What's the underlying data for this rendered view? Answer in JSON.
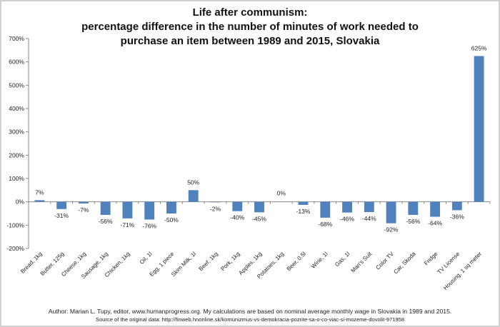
{
  "chart_data": {
    "type": "bar",
    "title_lines": [
      "Life after communism:",
      "percentage difference in the number of minutes of work needed to",
      "purchase an item between 1989 and 2015, Slovakia"
    ],
    "categories": [
      "Bread, 1kg",
      "Butter, 125g",
      "Cheese, 1kg",
      "Sausage, 1kg",
      "Chicken, 1kg",
      "Oil, 1l",
      "Egg, 1 piece",
      "Skim Milk, 1l",
      "Beef, 1kg",
      "Pork, 1kg",
      "Apples, 1kg",
      "Potatoes, 1kg",
      "Beer, 0.5l",
      "Wine, 1l",
      "Gas, 1l",
      "Man's Suit",
      "Color TV",
      "Car, Skoda",
      "Fridge",
      "TV License",
      "Housing, 1 sq meter"
    ],
    "values": [
      7,
      -31,
      -7,
      -56,
      -71,
      -76,
      -50,
      50,
      -2,
      -40,
      -45,
      0,
      -13,
      -68,
      -46,
      -44,
      -92,
      -56,
      -64,
      -36,
      625
    ],
    "data_labels": [
      "7%",
      "-31%",
      "-7%",
      "-56%",
      "-71%",
      "-76%",
      "-50%",
      "50%",
      "-2%",
      "-40%",
      "-45%",
      "0%",
      "-13%",
      "-68%",
      "-46%",
      "-44%",
      "-92%",
      "-56%",
      "-64%",
      "-36%",
      "625%"
    ],
    "y_ticks": [
      "-200%",
      "-100%",
      "0%",
      "100%",
      "200%",
      "300%",
      "400%",
      "500%",
      "600%",
      "700%"
    ],
    "ylim": [
      -200,
      700
    ],
    "bar_color": "#4f81bd",
    "grid": false,
    "legend": "none"
  },
  "footer": {
    "line1": "Author: Marian L. Tupy, editor, www.humanprogress.org. My calculations are based on nominal average monthly wage in Slovakia in 1989 and 2015.",
    "line2": "Source of the original data: http://finweb.hnonline.sk/komunizmus-vs-demokracia-pozrite-sa-o-co-viac-si-mozeme-dovolit-971958"
  }
}
